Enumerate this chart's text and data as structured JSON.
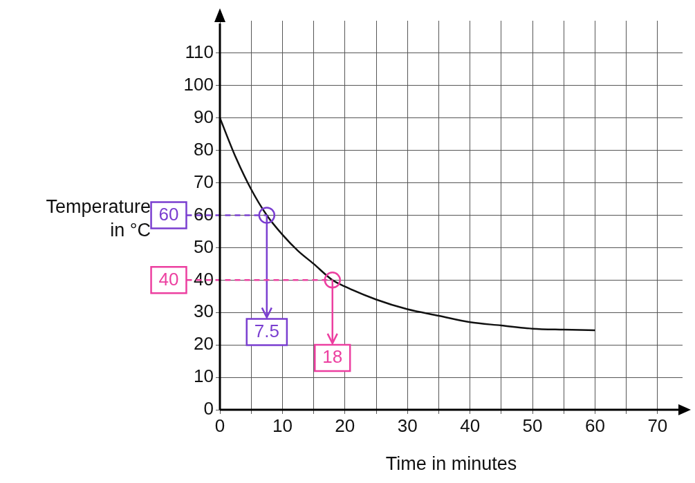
{
  "chart_data": {
    "type": "line",
    "xlabel": "Time in minutes",
    "ylabel": "Temperature in °C",
    "x": [
      0,
      2.5,
      5,
      7.5,
      10,
      12.5,
      15,
      18,
      20,
      25,
      30,
      35,
      40,
      45,
      50,
      55,
      60
    ],
    "series": [
      {
        "color": "#111111",
        "values": [
          90,
          78,
          68,
          60,
          54,
          49,
          45,
          40,
          38,
          34,
          31,
          29,
          27,
          26,
          25,
          24.7,
          24.5
        ]
      }
    ],
    "xlim": [
      0,
      74
    ],
    "ylim": [
      0,
      120
    ],
    "xticks": [
      0,
      {
        "value": 5,
        "label": null
      },
      10,
      {
        "value": 15,
        "label": null
      },
      20,
      {
        "value": 25,
        "label": null
      },
      30,
      {
        "value": 35,
        "label": null
      },
      40,
      {
        "value": 45,
        "label": null
      },
      50,
      {
        "value": 55,
        "label": null
      },
      60,
      {
        "value": 65,
        "label": null
      },
      70
    ],
    "yticks": [
      0,
      10,
      20,
      30,
      40,
      50,
      60,
      70,
      80,
      90,
      100,
      110
    ],
    "grid": true,
    "marker": "none",
    "line_style": "solid",
    "ref_lines": [
      {
        "axis": "y",
        "value": 60,
        "label": "60",
        "color": "#7a3ed0",
        "line_style": "dashed"
      },
      {
        "axis": "x",
        "value": 7.5,
        "label": "7.5",
        "color": "#7a3ed0",
        "line_style": "solid"
      },
      {
        "axis": "y",
        "value": 40,
        "label": "40",
        "color": "#ec3fa0",
        "line_style": "dashed"
      },
      {
        "axis": "x",
        "value": 18,
        "label": "18",
        "color": "#ec3fa0",
        "line_style": "solid"
      }
    ]
  }
}
